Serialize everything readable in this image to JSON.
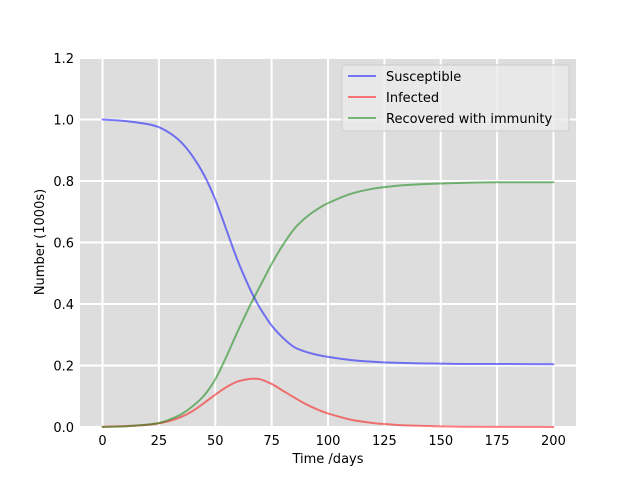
{
  "chart_data": {
    "type": "line",
    "title": "",
    "xlabel": "Time /days",
    "ylabel": "Number (1000s)",
    "xlim": [
      -10,
      210
    ],
    "ylim": [
      0,
      1.2
    ],
    "xticks": [
      0,
      25,
      50,
      75,
      100,
      125,
      150,
      175,
      200
    ],
    "xtick_labels": [
      "0",
      "25",
      "50",
      "75",
      "100",
      "125",
      "150",
      "175",
      "200"
    ],
    "yticks": [
      0,
      0.2,
      0.4,
      0.6,
      0.8,
      1.0,
      1.2
    ],
    "ytick_labels": [
      "0.0",
      "0.2",
      "0.4",
      "0.6",
      "0.8",
      "1.0",
      "1.2"
    ],
    "grid": true,
    "background": "#dddddd",
    "legend_position": "top-right",
    "x": [
      0,
      10,
      20,
      25,
      30,
      35,
      40,
      45,
      50,
      55,
      60,
      65,
      67,
      70,
      75,
      80,
      85,
      90,
      95,
      100,
      110,
      120,
      130,
      140,
      150,
      160,
      175,
      200
    ],
    "series": [
      {
        "name": "Susceptible",
        "color": "#0000ff",
        "values": [
          1.0,
          0.995,
          0.985,
          0.975,
          0.955,
          0.925,
          0.88,
          0.82,
          0.74,
          0.64,
          0.54,
          0.455,
          0.425,
          0.385,
          0.33,
          0.29,
          0.26,
          0.245,
          0.235,
          0.228,
          0.218,
          0.212,
          0.209,
          0.207,
          0.206,
          0.205,
          0.205,
          0.204
        ]
      },
      {
        "name": "Infected",
        "color": "#ff0000",
        "values": [
          0.001,
          0.003,
          0.007,
          0.012,
          0.02,
          0.033,
          0.052,
          0.078,
          0.105,
          0.13,
          0.148,
          0.156,
          0.157,
          0.155,
          0.14,
          0.118,
          0.096,
          0.075,
          0.058,
          0.044,
          0.024,
          0.013,
          0.007,
          0.004,
          0.002,
          0.001,
          0.0005,
          0.0001
        ]
      },
      {
        "name": "Recovered with immunity",
        "color": "#008000",
        "values": [
          0.0,
          0.002,
          0.008,
          0.013,
          0.025,
          0.042,
          0.068,
          0.102,
          0.155,
          0.23,
          0.312,
          0.389,
          0.418,
          0.46,
          0.53,
          0.592,
          0.644,
          0.68,
          0.707,
          0.728,
          0.758,
          0.775,
          0.784,
          0.789,
          0.792,
          0.794,
          0.796,
          0.796
        ]
      }
    ]
  }
}
